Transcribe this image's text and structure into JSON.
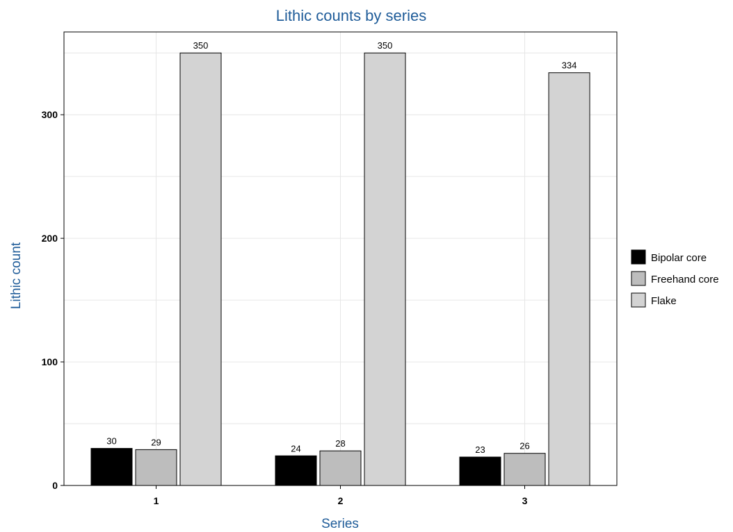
{
  "chart_data": {
    "type": "bar",
    "title": "Lithic counts by series",
    "xlabel": "Series",
    "ylabel": "Lithic count",
    "categories": [
      "1",
      "2",
      "3"
    ],
    "series": [
      {
        "name": "Bipolar core",
        "values": [
          30,
          24,
          23
        ],
        "color": "#000000"
      },
      {
        "name": "Freehand core",
        "values": [
          29,
          28,
          26
        ],
        "color": "#bdbdbd"
      },
      {
        "name": "Flake",
        "values": [
          350,
          350,
          334
        ],
        "color": "#d3d3d3"
      }
    ],
    "ylim": [
      0,
      367
    ],
    "yticks": [
      0,
      100,
      200,
      300
    ],
    "grid": true,
    "legend": "right"
  }
}
